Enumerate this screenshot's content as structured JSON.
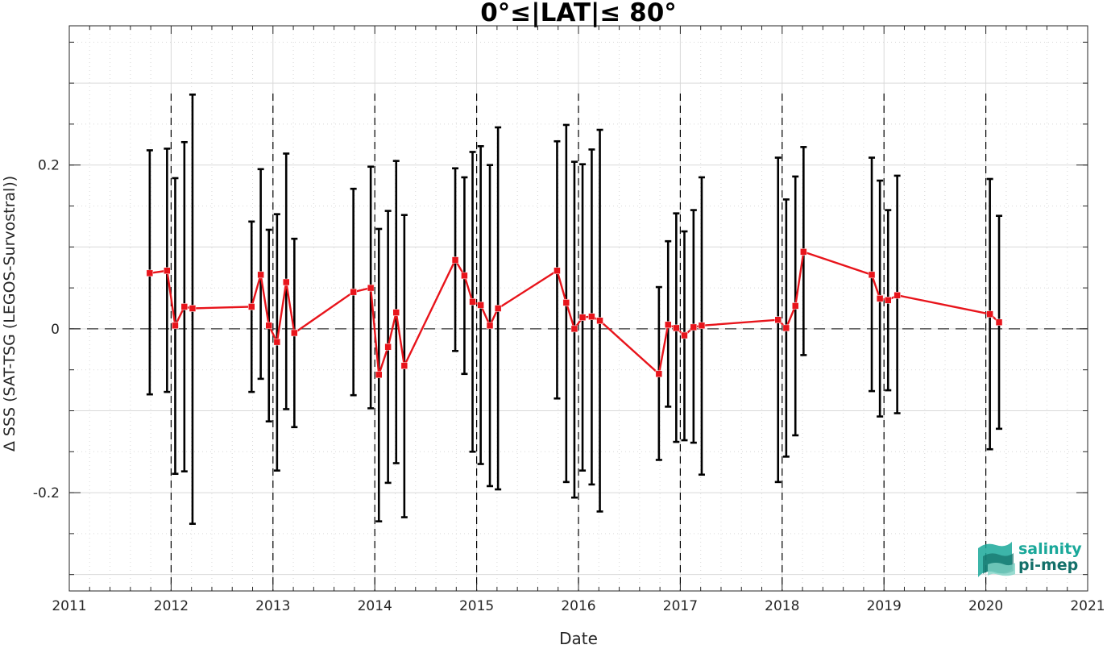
{
  "chart_data": {
    "type": "line",
    "title": "0°≤|LAT|≤ 80°",
    "xlabel": "Date",
    "ylabel": "Δ SSS (SAT-TSG (LEGOS-Survostral))",
    "xlim": [
      2011,
      2021
    ],
    "ylim": [
      -0.32,
      0.37
    ],
    "x_ticks": [
      2011,
      2012,
      2013,
      2014,
      2015,
      2016,
      2017,
      2018,
      2019,
      2020,
      2021
    ],
    "x_tick_labels": [
      "2011",
      "2012",
      "2013",
      "2014",
      "2015",
      "2016",
      "2017",
      "2018",
      "2019",
      "2020",
      "2021"
    ],
    "y_ticks": [
      -0.2,
      0,
      0.2
    ],
    "y_tick_labels": [
      "-0.2",
      "0",
      "0.2"
    ],
    "grid": true,
    "zero_line": true,
    "year_boundaries_dashed": [
      2012,
      2013,
      2014,
      2015,
      2016,
      2017,
      2018,
      2019,
      2020
    ],
    "colors": {
      "series": "#e8141b",
      "errorbar": "#000000",
      "grid": "#d9d9d9",
      "logo_primary": "#1aa89a",
      "logo_dark": "#13706a"
    },
    "series": [
      {
        "x": [
          2011.79,
          2011.96,
          2012.04,
          2012.13,
          2012.21,
          2012.79,
          2012.88,
          2012.96,
          2013.04,
          2013.13,
          2013.21,
          2013.79,
          2013.96,
          2014.04,
          2014.13,
          2014.21,
          2014.29,
          2014.79,
          2014.88,
          2014.96,
          2015.04,
          2015.13,
          2015.21,
          2015.79,
          2015.88,
          2015.96,
          2016.04,
          2016.13,
          2016.21,
          2016.79,
          2016.88,
          2016.96,
          2017.04,
          2017.13,
          2017.21,
          2017.96,
          2018.04,
          2018.13,
          2018.21,
          2018.88,
          2018.96,
          2019.04,
          2019.13,
          2020.04,
          2020.13
        ],
        "values": [
          0.068,
          0.071,
          0.004,
          0.027,
          0.025,
          0.027,
          0.066,
          0.004,
          -0.016,
          0.057,
          -0.005,
          0.045,
          0.05,
          -0.056,
          -0.022,
          0.02,
          -0.045,
          0.084,
          0.065,
          0.033,
          0.029,
          0.004,
          0.025,
          0.071,
          0.032,
          0.0,
          0.014,
          0.015,
          0.01,
          -0.055,
          0.005,
          0.001,
          -0.008,
          0.002,
          0.004,
          0.011,
          0.001,
          0.028,
          0.094,
          0.066,
          0.037,
          0.035,
          0.041,
          0.018,
          0.008
        ],
        "lower": [
          -0.08,
          -0.077,
          -0.177,
          -0.174,
          -0.238,
          -0.077,
          -0.061,
          -0.113,
          -0.173,
          -0.098,
          -0.12,
          -0.081,
          -0.097,
          -0.235,
          -0.188,
          -0.164,
          -0.23,
          -0.027,
          -0.055,
          -0.15,
          -0.165,
          -0.192,
          -0.196,
          -0.085,
          -0.187,
          -0.206,
          -0.173,
          -0.19,
          -0.223,
          -0.16,
          -0.095,
          -0.138,
          -0.136,
          -0.139,
          -0.178,
          -0.187,
          -0.156,
          -0.13,
          -0.032,
          -0.076,
          -0.107,
          -0.075,
          -0.103,
          -0.147,
          -0.122
        ],
        "upper": [
          0.218,
          0.22,
          0.184,
          0.228,
          0.286,
          0.131,
          0.195,
          0.121,
          0.14,
          0.214,
          0.11,
          0.171,
          0.198,
          0.122,
          0.144,
          0.205,
          0.139,
          0.196,
          0.185,
          0.216,
          0.223,
          0.2,
          0.246,
          0.229,
          0.249,
          0.204,
          0.201,
          0.219,
          0.243,
          0.051,
          0.107,
          0.141,
          0.119,
          0.145,
          0.185,
          0.209,
          0.158,
          0.186,
          0.222,
          0.209,
          0.181,
          0.145,
          0.187,
          0.183,
          0.138
        ]
      }
    ]
  },
  "logo": {
    "line1": "salinity",
    "line2": "pi-mep"
  }
}
